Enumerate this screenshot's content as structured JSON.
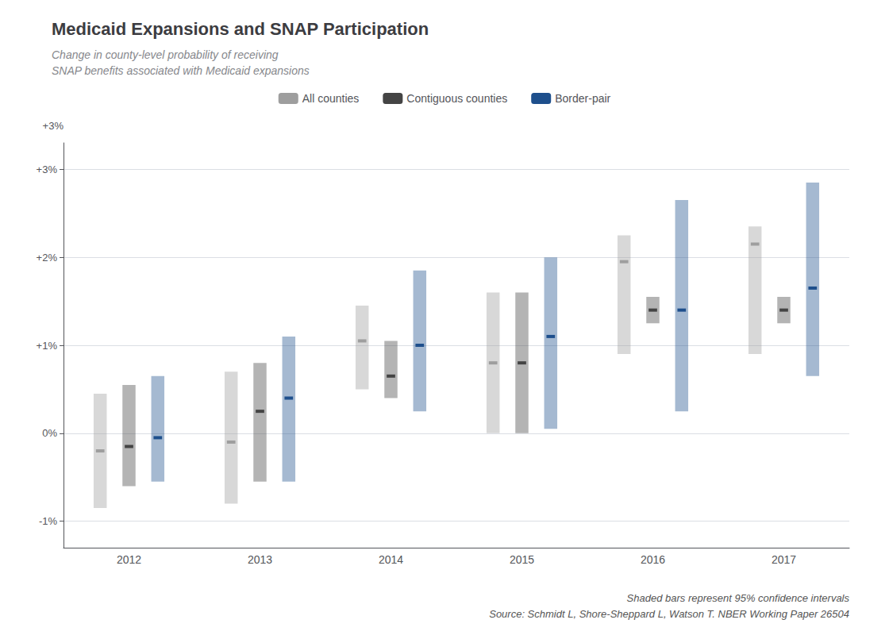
{
  "chart_data": {
    "type": "range",
    "title": "Medicaid Expansions and SNAP Participation",
    "subtitle": [
      "Change in county-level probability of receiving",
      "SNAP benefits associated with Medicaid expansions"
    ],
    "ylabel": "+3%",
    "notes": [
      "Shaded bars represent 95% confidence intervals",
      "Source: Schmidt L, Shore-Sheppard L, Watson T. NBER Working Paper 26504"
    ],
    "categories": [
      "2012",
      "2013",
      "2014",
      "2015",
      "2016",
      "2017"
    ],
    "series": [
      {
        "name": "All counties",
        "color": "#9e9e9e",
        "values": [
          -0.002,
          -0.001,
          0.0105,
          0.008,
          0.0195,
          0.0215
        ],
        "ci_low": [
          -0.0085,
          -0.008,
          0.005,
          0.0,
          0.009,
          0.009
        ],
        "ci_high": [
          0.0045,
          0.007,
          0.0145,
          0.016,
          0.0225,
          0.0235
        ]
      },
      {
        "name": "Contiguous counties",
        "color": "#444444",
        "values": [
          -0.0015,
          0.0025,
          0.0065,
          0.008,
          0.014,
          0.014
        ],
        "ci_low": [
          -0.006,
          -0.0055,
          0.004,
          0.0,
          0.0125,
          0.0125
        ],
        "ci_high": [
          0.0055,
          0.008,
          0.0105,
          0.016,
          0.0155,
          0.0155
        ]
      },
      {
        "name": "Border-pair",
        "color": "#1e4f8c",
        "values": [
          -0.0005,
          0.004,
          0.01,
          0.011,
          0.014,
          0.0165
        ],
        "ci_low": [
          -0.0055,
          -0.0055,
          0.0025,
          0.0005,
          0.0025,
          0.0065
        ],
        "ci_high": [
          0.0065,
          0.011,
          0.0185,
          0.02,
          0.0265,
          0.0285
        ]
      }
    ],
    "ylim": [
      -0.013,
      0.033
    ],
    "yticks": [
      {
        "value": -0.01,
        "label": "-1%"
      },
      {
        "value": 0.0,
        "label": "0%"
      },
      {
        "value": 0.01,
        "label": "+1%"
      },
      {
        "value": 0.02,
        "label": "+2%"
      },
      {
        "value": 0.03,
        "label": "+3%"
      }
    ],
    "grid": "y",
    "legend": "top"
  }
}
